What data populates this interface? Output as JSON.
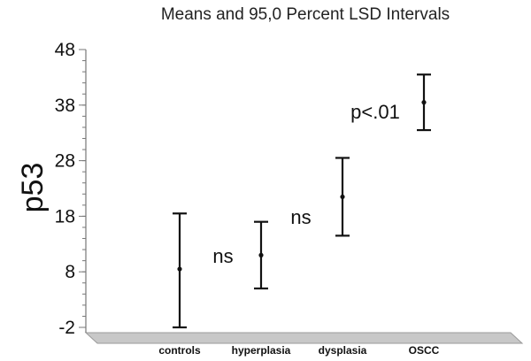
{
  "chart_data": {
    "type": "interval",
    "title": "Means and 95,0 Percent LSD Intervals",
    "ylabel": "p53",
    "xlabel": "",
    "ylim": [
      -2,
      48
    ],
    "yticks": [
      48,
      38,
      28,
      18,
      8,
      -2
    ],
    "categories": [
      "controls",
      "hyperplasia",
      "dysplasia",
      "OSCC"
    ],
    "means": [
      8.5,
      11.0,
      21.5,
      38.5
    ],
    "lower": [
      -2.0,
      5.0,
      14.5,
      33.5
    ],
    "upper": [
      18.5,
      17.0,
      28.5,
      43.5
    ],
    "annotations": [
      {
        "text": "ns",
        "between": [
          0,
          1
        ]
      },
      {
        "text": "ns",
        "between": [
          1,
          2
        ]
      },
      {
        "text": "p<.01",
        "between": [
          2,
          3
        ]
      }
    ],
    "grid": false,
    "legend": "none"
  }
}
